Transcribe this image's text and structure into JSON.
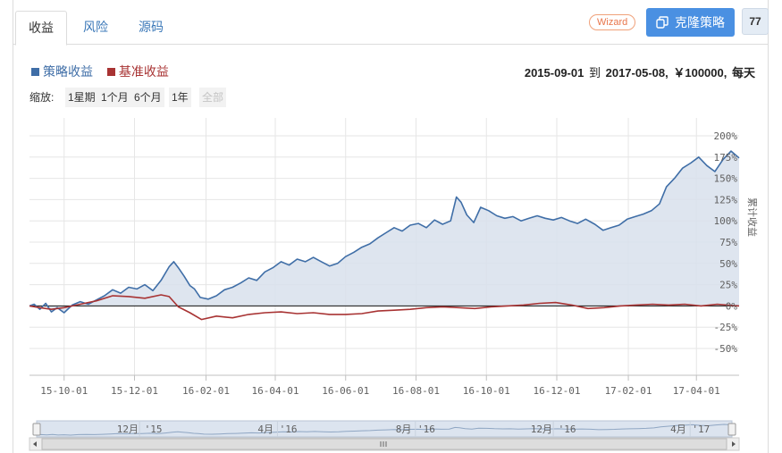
{
  "tabs": [
    {
      "label": "收益",
      "active": true
    },
    {
      "label": "风险",
      "active": false
    },
    {
      "label": "源码",
      "active": false
    }
  ],
  "toolbar": {
    "wizard_label": "Wizard",
    "clone_label": "克隆策略",
    "count": "77"
  },
  "legend": {
    "strategy_label": "策略收益",
    "benchmark_label": "基准收益"
  },
  "range": {
    "start": "2015-09-01",
    "sep": "到",
    "end": "2017-05-08,",
    "capital": "￥100000,",
    "frequency": "每天"
  },
  "zoom": {
    "label": "缩放:",
    "buttons": [
      "1星期",
      "1个月",
      "6个月",
      "1年",
      "全部"
    ],
    "disabled_index": 4
  },
  "chart_data": {
    "type": "area",
    "ylabel": "累计收益",
    "ylim": [
      -50,
      200
    ],
    "yticks": [
      "200%",
      "175%",
      "150%",
      "125%",
      "100%",
      "75%",
      "50%",
      "25%",
      "0%",
      "-25%",
      "-50%"
    ],
    "ytick_values": [
      200,
      175,
      150,
      125,
      100,
      75,
      50,
      25,
      0,
      -25,
      -50
    ],
    "xlim": [
      "2015-09-01",
      "2017-05-08"
    ],
    "xticks": [
      {
        "label": "15-10-01",
        "date": "2015-10-01"
      },
      {
        "label": "15-12-01",
        "date": "2015-12-01"
      },
      {
        "label": "16-02-01",
        "date": "2016-02-01"
      },
      {
        "label": "16-04-01",
        "date": "2016-04-01"
      },
      {
        "label": "16-06-01",
        "date": "2016-06-01"
      },
      {
        "label": "16-08-01",
        "date": "2016-08-01"
      },
      {
        "label": "16-10-01",
        "date": "2016-10-01"
      },
      {
        "label": "16-12-01",
        "date": "2016-12-01"
      },
      {
        "label": "17-02-01",
        "date": "2017-02-01"
      },
      {
        "label": "17-04-01",
        "date": "2017-04-01"
      }
    ],
    "series": [
      {
        "name": "策略收益",
        "color": "#3f6ea7",
        "fill": "#d8e1ec",
        "points": [
          [
            "2015-09-01",
            0
          ],
          [
            "2015-09-05",
            2
          ],
          [
            "2015-09-10",
            -4
          ],
          [
            "2015-09-15",
            3
          ],
          [
            "2015-09-20",
            -7
          ],
          [
            "2015-09-25",
            -2
          ],
          [
            "2015-10-01",
            -8
          ],
          [
            "2015-10-08",
            1
          ],
          [
            "2015-10-15",
            5
          ],
          [
            "2015-10-22",
            2
          ],
          [
            "2015-10-29",
            7
          ],
          [
            "2015-11-05",
            12
          ],
          [
            "2015-11-12",
            19
          ],
          [
            "2015-11-19",
            15
          ],
          [
            "2015-11-26",
            22
          ],
          [
            "2015-12-03",
            20
          ],
          [
            "2015-12-10",
            25
          ],
          [
            "2015-12-17",
            18
          ],
          [
            "2015-12-24",
            30
          ],
          [
            "2015-12-31",
            46
          ],
          [
            "2016-01-04",
            52
          ],
          [
            "2016-01-08",
            45
          ],
          [
            "2016-01-13",
            35
          ],
          [
            "2016-01-18",
            24
          ],
          [
            "2016-01-22",
            20
          ],
          [
            "2016-01-27",
            10
          ],
          [
            "2016-02-03",
            8
          ],
          [
            "2016-02-10",
            12
          ],
          [
            "2016-02-17",
            19
          ],
          [
            "2016-02-24",
            22
          ],
          [
            "2016-03-02",
            27
          ],
          [
            "2016-03-09",
            33
          ],
          [
            "2016-03-16",
            30
          ],
          [
            "2016-03-23",
            40
          ],
          [
            "2016-03-30",
            45
          ],
          [
            "2016-04-06",
            52
          ],
          [
            "2016-04-13",
            48
          ],
          [
            "2016-04-20",
            55
          ],
          [
            "2016-04-27",
            52
          ],
          [
            "2016-05-04",
            57
          ],
          [
            "2016-05-11",
            52
          ],
          [
            "2016-05-18",
            47
          ],
          [
            "2016-05-25",
            50
          ],
          [
            "2016-06-01",
            58
          ],
          [
            "2016-06-08",
            63
          ],
          [
            "2016-06-15",
            69
          ],
          [
            "2016-06-22",
            73
          ],
          [
            "2016-06-29",
            80
          ],
          [
            "2016-07-06",
            86
          ],
          [
            "2016-07-13",
            92
          ],
          [
            "2016-07-20",
            88
          ],
          [
            "2016-07-27",
            95
          ],
          [
            "2016-08-03",
            97
          ],
          [
            "2016-08-10",
            92
          ],
          [
            "2016-08-17",
            101
          ],
          [
            "2016-08-24",
            96
          ],
          [
            "2016-08-31",
            100
          ],
          [
            "2016-09-05",
            128
          ],
          [
            "2016-09-09",
            122
          ],
          [
            "2016-09-14",
            107
          ],
          [
            "2016-09-20",
            98
          ],
          [
            "2016-09-26",
            116
          ],
          [
            "2016-10-03",
            112
          ],
          [
            "2016-10-10",
            106
          ],
          [
            "2016-10-17",
            103
          ],
          [
            "2016-10-24",
            105
          ],
          [
            "2016-10-31",
            100
          ],
          [
            "2016-11-07",
            103
          ],
          [
            "2016-11-14",
            106
          ],
          [
            "2016-11-21",
            103
          ],
          [
            "2016-11-28",
            101
          ],
          [
            "2016-12-05",
            104
          ],
          [
            "2016-12-12",
            100
          ],
          [
            "2016-12-19",
            97
          ],
          [
            "2016-12-26",
            102
          ],
          [
            "2017-01-03",
            96
          ],
          [
            "2017-01-10",
            89
          ],
          [
            "2017-01-17",
            92
          ],
          [
            "2017-01-24",
            95
          ],
          [
            "2017-01-31",
            102
          ],
          [
            "2017-02-07",
            105
          ],
          [
            "2017-02-14",
            108
          ],
          [
            "2017-02-21",
            112
          ],
          [
            "2017-02-28",
            120
          ],
          [
            "2017-03-06",
            140
          ],
          [
            "2017-03-13",
            150
          ],
          [
            "2017-03-20",
            162
          ],
          [
            "2017-03-27",
            168
          ],
          [
            "2017-04-03",
            175
          ],
          [
            "2017-04-10",
            165
          ],
          [
            "2017-04-17",
            158
          ],
          [
            "2017-04-24",
            172
          ],
          [
            "2017-05-01",
            182
          ],
          [
            "2017-05-08",
            174
          ]
        ]
      },
      {
        "name": "基准收益",
        "color": "#a83333",
        "points": [
          [
            "2015-09-01",
            0
          ],
          [
            "2015-09-10",
            -2
          ],
          [
            "2015-09-20",
            -4
          ],
          [
            "2015-10-01",
            -2
          ],
          [
            "2015-10-15",
            2
          ],
          [
            "2015-10-29",
            6
          ],
          [
            "2015-11-12",
            12
          ],
          [
            "2015-11-26",
            11
          ],
          [
            "2015-12-10",
            9
          ],
          [
            "2015-12-24",
            13
          ],
          [
            "2015-12-31",
            11
          ],
          [
            "2016-01-08",
            -1
          ],
          [
            "2016-01-18",
            -8
          ],
          [
            "2016-01-28",
            -16
          ],
          [
            "2016-02-10",
            -12
          ],
          [
            "2016-02-24",
            -14
          ],
          [
            "2016-03-09",
            -10
          ],
          [
            "2016-03-23",
            -8
          ],
          [
            "2016-04-06",
            -7
          ],
          [
            "2016-04-20",
            -9
          ],
          [
            "2016-05-04",
            -8
          ],
          [
            "2016-05-18",
            -10
          ],
          [
            "2016-06-01",
            -10
          ],
          [
            "2016-06-15",
            -9
          ],
          [
            "2016-06-29",
            -6
          ],
          [
            "2016-07-13",
            -5
          ],
          [
            "2016-07-27",
            -4
          ],
          [
            "2016-08-10",
            -2
          ],
          [
            "2016-08-24",
            -1
          ],
          [
            "2016-09-07",
            -2
          ],
          [
            "2016-09-21",
            -3
          ],
          [
            "2016-10-05",
            -1
          ],
          [
            "2016-10-19",
            0
          ],
          [
            "2016-11-02",
            1
          ],
          [
            "2016-11-16",
            3
          ],
          [
            "2016-11-30",
            4
          ],
          [
            "2016-12-14",
            1
          ],
          [
            "2016-12-28",
            -3
          ],
          [
            "2017-01-11",
            -2
          ],
          [
            "2017-01-25",
            0
          ],
          [
            "2017-02-08",
            1
          ],
          [
            "2017-02-22",
            2
          ],
          [
            "2017-03-08",
            1
          ],
          [
            "2017-03-22",
            2
          ],
          [
            "2017-04-05",
            0
          ],
          [
            "2017-04-19",
            2
          ],
          [
            "2017-05-08",
            0
          ]
        ]
      }
    ],
    "navigator": {
      "ticks": [
        {
          "label": "12月 '15",
          "date": "2015-12-01"
        },
        {
          "label": "4月 '16",
          "date": "2016-04-01"
        },
        {
          "label": "8月 '16",
          "date": "2016-08-01"
        },
        {
          "label": "12月 '16",
          "date": "2016-12-01"
        },
        {
          "label": "4月 '17",
          "date": "2017-04-01"
        }
      ]
    }
  }
}
